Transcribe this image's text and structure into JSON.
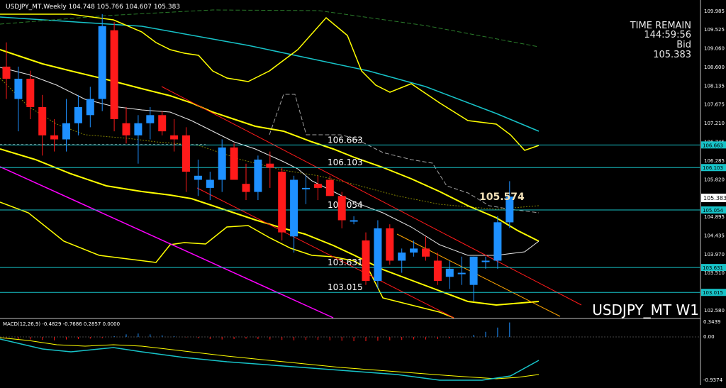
{
  "chart_header": "USDJPY_MT,Weekly  104.748 105.766 104.607 105.383",
  "info_panel": {
    "time_remain_label": "TIME REMAIN",
    "time_remain_value": "144:59:56",
    "bid_label": "Bid",
    "bid_value": "105.383"
  },
  "symbol_watermark": "USDJPY_MT W1",
  "macd_header": "MACD(12,26,9) -0.4829 -0.7686 0.2857 0.0000",
  "macd_right_labels": [
    "0.3439",
    "0.00",
    "-0.9374"
  ],
  "chart_data": [
    {
      "type": "candlestick",
      "title": "USDJPY_MT,Weekly",
      "price_scale_labels": [
        "109.985",
        "109.525",
        "109.060",
        "108.600",
        "108.135",
        "107.675",
        "107.210",
        "106.745",
        "106.285",
        "105.820",
        "105.383",
        "104.895",
        "104.435",
        "103.970",
        "103.510",
        "103.045",
        "102.580"
      ],
      "ylim": [
        102.35,
        110.1
      ],
      "horizontal_levels": [
        {
          "value": 106.663,
          "label": "106.663",
          "tag": "106.663"
        },
        {
          "value": 106.103,
          "label": "106.103",
          "tag": "106.103"
        },
        {
          "value": 105.054,
          "label": "105.054",
          "tag": "105.054"
        },
        {
          "value": 103.631,
          "label": "103.631",
          "tag": "103.631"
        },
        {
          "value": 103.015,
          "label": "103.015",
          "tag": "103.015"
        }
      ],
      "current_price": {
        "value": 105.383,
        "label": "105.383"
      },
      "annotation": {
        "value": 105.574,
        "label": "105.574"
      },
      "candles": [
        {
          "o": 108.6,
          "h": 109.2,
          "l": 107.8,
          "c": 108.3
        },
        {
          "o": 107.8,
          "h": 108.6,
          "l": 107.0,
          "c": 108.3
        },
        {
          "o": 108.3,
          "h": 108.5,
          "l": 107.3,
          "c": 107.6
        },
        {
          "o": 107.6,
          "h": 107.9,
          "l": 106.4,
          "c": 106.9
        },
        {
          "o": 106.9,
          "h": 107.3,
          "l": 106.5,
          "c": 106.8
        },
        {
          "o": 106.8,
          "h": 107.8,
          "l": 106.5,
          "c": 107.2
        },
        {
          "o": 107.2,
          "h": 107.9,
          "l": 106.9,
          "c": 107.6
        },
        {
          "o": 107.4,
          "h": 108.1,
          "l": 107.1,
          "c": 107.8
        },
        {
          "o": 107.8,
          "h": 109.9,
          "l": 107.5,
          "c": 109.6
        },
        {
          "o": 109.5,
          "h": 109.7,
          "l": 107.0,
          "c": 107.3
        },
        {
          "o": 107.2,
          "h": 107.6,
          "l": 106.7,
          "c": 106.9
        },
        {
          "o": 106.9,
          "h": 107.4,
          "l": 106.2,
          "c": 107.2
        },
        {
          "o": 107.2,
          "h": 107.6,
          "l": 106.8,
          "c": 107.4
        },
        {
          "o": 107.4,
          "h": 107.5,
          "l": 106.9,
          "c": 107.0
        },
        {
          "o": 106.9,
          "h": 107.3,
          "l": 106.5,
          "c": 106.8
        },
        {
          "o": 106.9,
          "h": 107.1,
          "l": 105.5,
          "c": 106.0
        },
        {
          "o": 105.8,
          "h": 106.3,
          "l": 105.4,
          "c": 105.9
        },
        {
          "o": 105.6,
          "h": 106.0,
          "l": 105.3,
          "c": 105.8
        },
        {
          "o": 105.8,
          "h": 106.8,
          "l": 105.5,
          "c": 106.6
        },
        {
          "o": 106.6,
          "h": 106.7,
          "l": 105.8,
          "c": 105.8
        },
        {
          "o": 105.7,
          "h": 106.2,
          "l": 105.3,
          "c": 105.5
        },
        {
          "o": 105.5,
          "h": 106.4,
          "l": 105.3,
          "c": 106.3
        },
        {
          "o": 106.2,
          "h": 106.5,
          "l": 105.6,
          "c": 106.1
        },
        {
          "o": 106.0,
          "h": 106.1,
          "l": 104.3,
          "c": 104.5
        },
        {
          "o": 104.4,
          "h": 105.9,
          "l": 104.0,
          "c": 105.8
        },
        {
          "o": 105.6,
          "h": 105.9,
          "l": 105.2,
          "c": 105.6
        },
        {
          "o": 105.7,
          "h": 105.9,
          "l": 105.3,
          "c": 105.6
        },
        {
          "o": 105.8,
          "h": 105.9,
          "l": 105.4,
          "c": 105.4
        },
        {
          "o": 105.4,
          "h": 105.5,
          "l": 104.6,
          "c": 104.8
        },
        {
          "o": 104.8,
          "h": 104.9,
          "l": 104.7,
          "c": 104.8
        },
        {
          "o": 104.3,
          "h": 104.5,
          "l": 103.2,
          "c": 103.3
        },
        {
          "o": 103.3,
          "h": 104.8,
          "l": 103.1,
          "c": 104.6
        },
        {
          "o": 104.6,
          "h": 104.7,
          "l": 103.7,
          "c": 103.8
        },
        {
          "o": 103.8,
          "h": 104.1,
          "l": 103.5,
          "c": 104.0
        },
        {
          "o": 104.0,
          "h": 104.3,
          "l": 103.9,
          "c": 104.1
        },
        {
          "o": 104.1,
          "h": 104.4,
          "l": 103.8,
          "c": 103.9
        },
        {
          "o": 103.8,
          "h": 104.0,
          "l": 103.2,
          "c": 103.3
        },
        {
          "o": 103.4,
          "h": 103.8,
          "l": 103.1,
          "c": 103.6
        },
        {
          "o": 103.5,
          "h": 103.9,
          "l": 103.2,
          "c": 103.5
        },
        {
          "o": 103.2,
          "h": 103.9,
          "l": 102.8,
          "c": 103.9
        },
        {
          "o": 103.8,
          "h": 103.9,
          "l": 103.6,
          "c": 103.8
        },
        {
          "o": 103.8,
          "h": 104.9,
          "l": 103.6,
          "c": 104.75
        },
        {
          "o": 104.748,
          "h": 105.766,
          "l": 104.607,
          "c": 105.383
        }
      ]
    },
    {
      "type": "histogram",
      "title": "MACD(12,26,9)",
      "values": [
        -0.02,
        -0.05,
        -0.06,
        -0.07,
        -0.08,
        -0.06,
        -0.05,
        -0.04,
        -0.03,
        0.02,
        0.06,
        0.08,
        0.06,
        0.04,
        0.02,
        -0.01,
        -0.03,
        -0.05,
        -0.06,
        -0.05,
        -0.04,
        -0.05,
        -0.06,
        -0.07,
        -0.08,
        -0.07,
        -0.07,
        -0.08,
        -0.09,
        -0.1,
        -0.1,
        -0.09,
        -0.08,
        -0.07,
        -0.06,
        -0.06,
        -0.05,
        -0.03,
        -0.01,
        0.05,
        0.12,
        0.22,
        0.34
      ],
      "ylabels": [
        "0.3439",
        "0.00",
        "-0.9374"
      ]
    }
  ]
}
